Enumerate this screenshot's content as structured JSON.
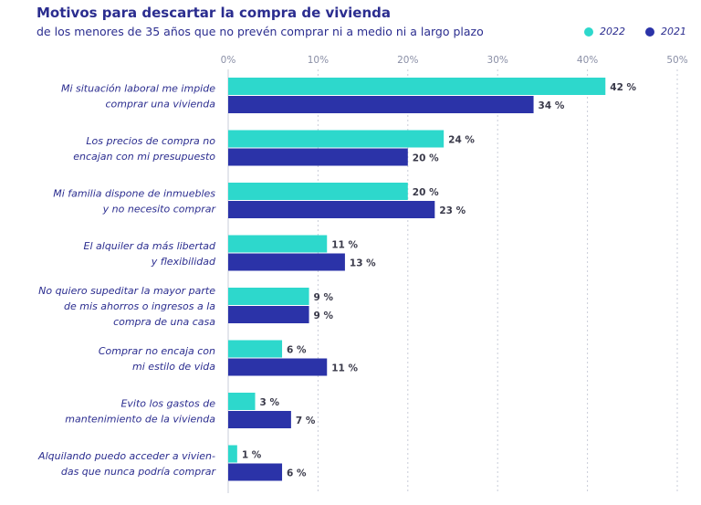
{
  "chart_data": {
    "type": "bar",
    "orientation": "horizontal",
    "title": "Motivos para descartar la compra de vivienda",
    "subtitle": "de los menores de 35 años que no prevén comprar ni a medio ni a largo plazo",
    "categories": [
      [
        "Mi situación laboral me impide",
        "comprar una vivienda"
      ],
      [
        "Los precios de compra no",
        "encajan con mi presupuesto"
      ],
      [
        "Mi familia dispone de inmuebles",
        "y no necesito comprar"
      ],
      [
        "El alquiler da más libertad",
        "y flexibilidad"
      ],
      [
        "No quiero supeditar la mayor parte",
        "de mis ahorros o ingresos a la",
        "compra de una casa"
      ],
      [
        "Comprar no encaja con",
        "mi estilo de vida"
      ],
      [
        "Evito los gastos de",
        "mantenimiento de la vivienda"
      ],
      [
        "Alquilando puedo acceder a vivien-",
        "das que nunca podría comprar"
      ]
    ],
    "series": [
      {
        "name": "2022",
        "color": "#2dd8cc",
        "values": [
          42,
          24,
          20,
          11,
          9,
          6,
          3,
          1
        ],
        "labels": [
          "42 %",
          "24 %",
          "20 %",
          "11 %",
          "9 %",
          "6 %",
          "3 %",
          "1 %"
        ]
      },
      {
        "name": "2021",
        "color": "#2b33a8",
        "values": [
          34,
          20,
          23,
          13,
          9,
          11,
          7,
          6
        ],
        "labels": [
          "34 %",
          "20 %",
          "23 %",
          "13 %",
          "9 %",
          "11 %",
          "7 %",
          "6 %"
        ]
      }
    ],
    "xlim": [
      0,
      50
    ],
    "xticks": [
      "0%",
      "10%",
      "20%",
      "30%",
      "40%",
      "50%"
    ],
    "grid": "vertical dotted",
    "legend_position": "top-right"
  }
}
